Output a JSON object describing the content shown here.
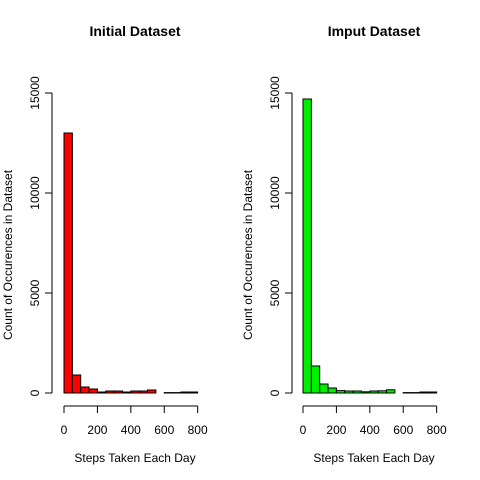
{
  "chart_data": [
    {
      "type": "bar",
      "title": "Initial Dataset",
      "xlabel": "Steps Taken Each Day",
      "ylabel": "Count of Occurences in Dataset",
      "color": "#ff0000",
      "bin_width": 50,
      "x_start": 0,
      "xlim": [
        0,
        850
      ],
      "ylim": [
        0,
        15000
      ],
      "xticks": [
        0,
        200,
        400,
        600,
        800
      ],
      "yticks": [
        0,
        5000,
        10000,
        15000
      ],
      "values": [
        13000,
        900,
        300,
        200,
        50,
        100,
        100,
        50,
        100,
        100,
        150,
        0,
        20,
        20,
        50,
        50
      ],
      "grid": false,
      "legend": "none"
    },
    {
      "type": "bar",
      "title": "Imput Dataset",
      "xlabel": "Steps Taken Each Day",
      "ylabel": "Count of Occurences in Dataset",
      "color": "#00ee00",
      "bin_width": 50,
      "x_start": 0,
      "xlim": [
        0,
        850
      ],
      "ylim": [
        0,
        15000
      ],
      "xticks": [
        0,
        200,
        400,
        600,
        800
      ],
      "yticks": [
        0,
        5000,
        10000,
        15000
      ],
      "values": [
        14700,
        1350,
        450,
        250,
        120,
        100,
        100,
        60,
        100,
        110,
        160,
        0,
        20,
        20,
        50,
        50
      ],
      "grid": false,
      "legend": "none"
    }
  ]
}
